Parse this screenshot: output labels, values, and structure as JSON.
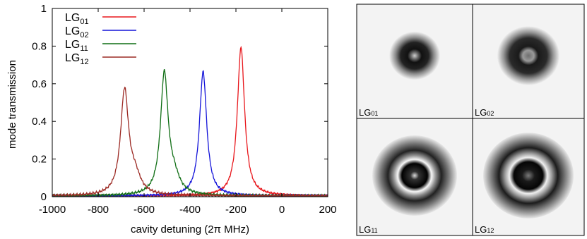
{
  "chart_data": [
    {
      "type": "line",
      "xlabel": "cavity detuning (2π MHz)",
      "ylabel": "mode transmission",
      "xlim": [
        -1000,
        200
      ],
      "ylim": [
        0,
        1
      ],
      "xticks": [
        "-1000",
        "-800",
        "-600",
        "-400",
        "-200",
        "0",
        "200"
      ],
      "yticks": [
        "0",
        "0.2",
        "0.4",
        "0.6",
        "0.8",
        "1"
      ],
      "grid": false,
      "legend_position": "top-left",
      "series": [
        {
          "name": "LG01",
          "label_base": "LG",
          "label_sub": "01",
          "color": "#e8161b",
          "peaks": [
            {
              "center": -178,
              "height": 0.79,
              "width": 19
            }
          ],
          "points": [
            [
              -1000,
              0.0
            ],
            [
              -400,
              0.01
            ],
            [
              -250,
              0.04
            ],
            [
              -210,
              0.2
            ],
            [
              -190,
              0.5
            ],
            [
              -178,
              0.8
            ],
            [
              -165,
              0.5
            ],
            [
              -140,
              0.2
            ],
            [
              -80,
              0.06
            ],
            [
              0,
              0.02
            ],
            [
              200,
              0.0
            ]
          ]
        },
        {
          "name": "LG02",
          "label_base": "LG",
          "label_sub": "02",
          "color": "#1414d9",
          "peaks": [
            {
              "center": -343,
              "height": 0.66,
              "width": 19
            }
          ],
          "points": [
            [
              -1000,
              0.02
            ],
            [
              -700,
              0.01
            ],
            [
              -450,
              0.06
            ],
            [
              -380,
              0.2
            ],
            [
              -355,
              0.45
            ],
            [
              -343,
              0.67
            ],
            [
              -330,
              0.45
            ],
            [
              -300,
              0.15
            ],
            [
              -220,
              0.02
            ],
            [
              200,
              0.0
            ]
          ]
        },
        {
          "name": "LG11",
          "label_base": "LG",
          "label_sub": "11",
          "color": "#0f6e14",
          "peaks": [
            {
              "center": -512,
              "height": 0.64,
              "width": 20
            },
            {
              "center": -470,
              "height": 0.08,
              "width": 30
            }
          ],
          "points": [
            [
              -1000,
              0.0
            ],
            [
              -700,
              0.01
            ],
            [
              -600,
              0.06
            ],
            [
              -545,
              0.25
            ],
            [
              -520,
              0.55
            ],
            [
              -512,
              0.65
            ],
            [
              -500,
              0.45
            ],
            [
              -470,
              0.22
            ],
            [
              -420,
              0.06
            ],
            [
              -300,
              0.02
            ],
            [
              200,
              0.0
            ]
          ]
        },
        {
          "name": "LG12",
          "label_base": "LG",
          "label_sub": "12",
          "color": "#9c2a24",
          "peaks": [
            {
              "center": -685,
              "height": 0.55,
              "width": 21
            },
            {
              "center": -640,
              "height": 0.09,
              "width": 30
            }
          ],
          "points": [
            [
              -1000,
              0.02
            ],
            [
              -800,
              0.04
            ],
            [
              -720,
              0.2
            ],
            [
              -685,
              0.56
            ],
            [
              -665,
              0.35
            ],
            [
              -640,
              0.25
            ],
            [
              -610,
              0.12
            ],
            [
              -550,
              0.03
            ],
            [
              -400,
              0.01
            ],
            [
              200,
              0.0
            ]
          ]
        }
      ]
    }
  ],
  "mode_images": [
    {
      "base": "LG",
      "sub": "01",
      "shape": "LG01"
    },
    {
      "base": "LG",
      "sub": "02",
      "shape": "LG02"
    },
    {
      "base": "LG",
      "sub": "11",
      "shape": "LG11"
    },
    {
      "base": "LG",
      "sub": "12",
      "shape": "LG12"
    }
  ]
}
